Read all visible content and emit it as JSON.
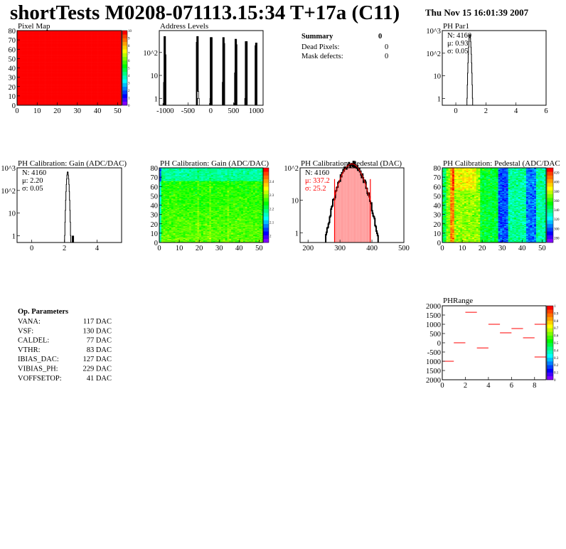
{
  "header": {
    "title": "shortTests M0208-071113.15:34 T+17a (C11)",
    "date": "Thu Nov 15 16:01:39 2007"
  },
  "summary": {
    "title": "Summary",
    "total": "0",
    "rows": [
      {
        "label": "Dead Pixels:",
        "value": "0"
      },
      {
        "label": "Mask defects:",
        "value": "0"
      }
    ]
  },
  "op_parameters": {
    "title": "Op. Parameters",
    "rows": [
      {
        "label": "VANA:",
        "value": "117 DAC"
      },
      {
        "label": "VSF:",
        "value": "130 DAC"
      },
      {
        "label": "CALDEL:",
        "value": "77 DAC"
      },
      {
        "label": "VTHR:",
        "value": "83 DAC"
      },
      {
        "label": "IBIAS_DAC:",
        "value": "127 DAC"
      },
      {
        "label": "VIBIAS_PH:",
        "value": "229 DAC"
      },
      {
        "label": "VOFFSETOP:",
        "value": "41 DAC"
      }
    ]
  },
  "chart_data": [
    {
      "id": "pixel-map",
      "type": "heatmap",
      "title": "Pixel Map",
      "xlim": [
        0,
        52
      ],
      "ylim": [
        0,
        80
      ],
      "zlim": [
        0,
        10
      ],
      "xticks": [
        "0",
        "10",
        "20",
        "30",
        "40",
        "50"
      ],
      "yticks": [
        "0",
        "10",
        "20",
        "30",
        "40",
        "50",
        "60",
        "70",
        "80"
      ],
      "zticks": [
        "0",
        "1",
        "2",
        "3",
        "4",
        "5",
        "6",
        "7",
        "8",
        "9",
        "10"
      ],
      "uniform_value": 10
    },
    {
      "id": "address-levels",
      "type": "bar",
      "title": "Address Levels",
      "log_y": true,
      "xlim": [
        -1130,
        1150
      ],
      "ylim": [
        0.5,
        900
      ],
      "xticks": [
        "-1000",
        "-500",
        "0",
        "500",
        "1000"
      ],
      "yticks": [
        "1",
        "10",
        "10^2"
      ],
      "bins": [
        [
          -1030,
          0.6
        ],
        [
          -1020,
          5
        ],
        [
          -1010,
          500
        ],
        [
          -1000,
          80
        ],
        [
          -300,
          280
        ],
        [
          -290,
          500
        ],
        [
          -280,
          2
        ],
        [
          -270,
          1
        ],
        [
          -10,
          0.6
        ],
        [
          0,
          1
        ],
        [
          5,
          450
        ],
        [
          15,
          450
        ],
        [
          270,
          5
        ],
        [
          280,
          450
        ],
        [
          290,
          250
        ],
        [
          530,
          0.6
        ],
        [
          540,
          13
        ],
        [
          550,
          380
        ],
        [
          560,
          220
        ],
        [
          765,
          1
        ],
        [
          775,
          300
        ],
        [
          785,
          300
        ],
        [
          990,
          200
        ],
        [
          1000,
          260
        ]
      ]
    },
    {
      "id": "ph-par1",
      "type": "histogram",
      "title": "PH Par1",
      "log_y": true,
      "xlim": [
        -0.9,
        6
      ],
      "ylim": [
        0.5,
        1000
      ],
      "xticks": [
        "0",
        "2",
        "4",
        "6"
      ],
      "yticks": [
        "1",
        "10",
        "10^2",
        "10^3"
      ],
      "stats": {
        "n": "N: 4160",
        "mean": "μ: 0.93",
        "sigma": "σ: 0.05"
      },
      "entries": 4160,
      "mean": 0.93,
      "sigma": 0.05
    },
    {
      "id": "gain-hist",
      "type": "histogram",
      "title": "PH Calibration: Gain (ADC/DAC)",
      "log_y": true,
      "xlim": [
        -0.9,
        5.5
      ],
      "ylim": [
        0.5,
        1000
      ],
      "xticks": [
        "0",
        "2",
        "4"
      ],
      "yticks": [
        "1",
        "10",
        "10^2",
        "10^3"
      ],
      "stats": {
        "n": "N: 4160",
        "mean": "μ: 2.20",
        "sigma": "σ: 0.05"
      },
      "entries": 4160,
      "mean": 2.2,
      "sigma": 0.05,
      "outlier": [
        2.52,
        1
      ]
    },
    {
      "id": "gain-map",
      "type": "heatmap",
      "title": "PH Calibration: Gain (ADC/DAC)",
      "xlim": [
        0,
        52
      ],
      "ylim": [
        0,
        80
      ],
      "zlim": [
        1.95,
        2.5
      ],
      "xticks": [
        "0",
        "10",
        "20",
        "30",
        "40",
        "50"
      ],
      "yticks": [
        "0",
        "10",
        "20",
        "30",
        "40",
        "50",
        "60",
        "70",
        "80"
      ],
      "zticks": [
        "2",
        "2.1",
        "2.2",
        "2.3",
        "2.4"
      ]
    },
    {
      "id": "pedestal-hist",
      "type": "histogram",
      "title": "PH Calibration: Pedestal (DAC)",
      "log_y": true,
      "xlim": [
        175,
        500
      ],
      "ylim": [
        0.5,
        100
      ],
      "xticks": [
        "200",
        "300",
        "400",
        "500"
      ],
      "yticks": [
        "1",
        "10",
        "10^2"
      ],
      "stats": {
        "n": "N: 4160",
        "mean": "μ: 337.2",
        "sigma": "σ: 25.2"
      },
      "entries": 4160,
      "mean": 337.2,
      "sigma": 25.2,
      "fit_range": [
        283,
        395
      ],
      "fit_color": "#ff0000"
    },
    {
      "id": "pedestal-map",
      "type": "heatmap",
      "title": "PH Calibration: Pedestal (ADC/DAC",
      "xlim": [
        0,
        52
      ],
      "ylim": [
        0,
        80
      ],
      "zlim": [
        270,
        430
      ],
      "xticks": [
        "0",
        "10",
        "20",
        "30",
        "40",
        "50"
      ],
      "yticks": [
        "0",
        "10",
        "20",
        "30",
        "40",
        "50",
        "60",
        "70",
        "80"
      ],
      "zticks": [
        "280",
        "300",
        "320",
        "340",
        "360",
        "380",
        "400",
        "420"
      ]
    },
    {
      "id": "ph-range",
      "type": "scatter",
      "title": "PHRange",
      "xlim": [
        0,
        9
      ],
      "ylim": [
        -2000,
        2000
      ],
      "zlim": [
        0,
        1
      ],
      "xticks": [
        "0",
        "2",
        "4",
        "6",
        "8"
      ],
      "yticks": [
        "2000",
        "1500",
        "1000",
        "500",
        "0",
        "-500",
        "1000",
        "1500",
        "2000"
      ],
      "zticks": [
        "0",
        "0.1",
        "0.2",
        "0.3",
        "0.4",
        "0.5",
        "0.6",
        "0.7",
        "0.8",
        "0.9",
        "1"
      ],
      "segments": [
        [
          0,
          1,
          -1000
        ],
        [
          1,
          2,
          0
        ],
        [
          2,
          3,
          1650
        ],
        [
          3,
          4,
          -280
        ],
        [
          4,
          5,
          1000
        ],
        [
          5,
          6,
          540
        ],
        [
          6,
          7,
          770
        ],
        [
          7,
          8,
          270
        ],
        [
          8,
          9,
          1000
        ],
        [
          8,
          9,
          -770
        ]
      ],
      "line_color": "#ff0000"
    }
  ]
}
